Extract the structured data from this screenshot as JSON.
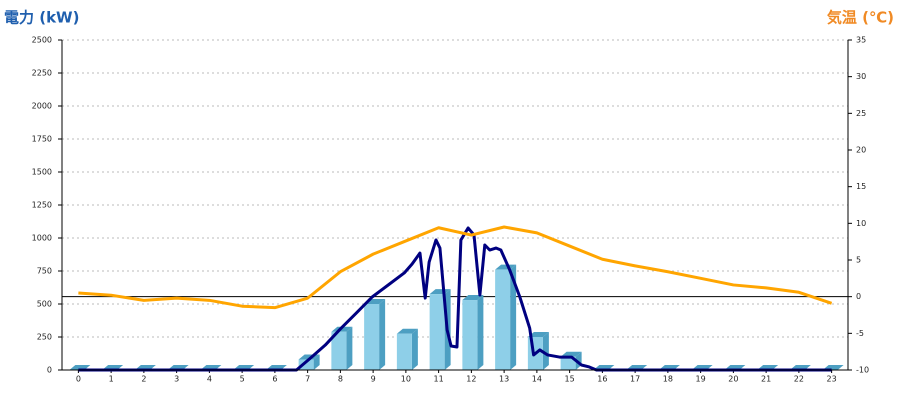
{
  "chart_data": {
    "type": "bar",
    "title": "電力 (kW)",
    "y2_title": "気温 (℃)",
    "x": [
      0,
      1,
      2,
      3,
      4,
      5,
      6,
      7,
      8,
      9,
      10,
      11,
      12,
      13,
      14,
      15,
      16,
      17,
      18,
      19,
      20,
      21,
      22,
      23
    ],
    "xlim": [
      -0.5,
      23.5
    ],
    "xticks": [
      0,
      1,
      2,
      3,
      4,
      5,
      6,
      7,
      8,
      9,
      10,
      11,
      12,
      13,
      14,
      15,
      16,
      17,
      18,
      19,
      20,
      21,
      22,
      23
    ],
    "ylim": [
      0,
      2500
    ],
    "yticks": [
      0,
      250,
      500,
      750,
      1000,
      1250,
      1500,
      1750,
      2000,
      2250,
      2500
    ],
    "y2lim": [
      -10,
      35
    ],
    "y2ticks": [
      -10,
      -5,
      0,
      5,
      10,
      15,
      20,
      25,
      30,
      35
    ],
    "grid": true,
    "title_color": "#1f5fae",
    "y2_title_color": "#f08a24",
    "series": [
      {
        "type": "bar",
        "color": "#8ecfe8",
        "side_color": "#4d9fc2",
        "values": [
          0,
          0,
          0,
          0,
          0,
          0,
          0,
          80,
          290,
          500,
          275,
          575,
          530,
          760,
          250,
          100,
          0,
          0,
          0,
          0,
          0,
          0,
          0,
          0
        ]
      },
      {
        "type": "line",
        "color": "#000080",
        "x": [
          0,
          6.66,
          7.09,
          7.54,
          8.0,
          8.49,
          8.97,
          9.46,
          9.95,
          10.19,
          10.43,
          10.59,
          10.71,
          10.92,
          11.04,
          11.26,
          11.38,
          11.56,
          11.68,
          11.9,
          12.08,
          12.26,
          12.41,
          12.56,
          12.75,
          12.9,
          13.17,
          13.48,
          13.78,
          13.9,
          14.09,
          14.33,
          14.69,
          15.06,
          15.36,
          15.6,
          15.82,
          23
        ],
        "values": [
          0,
          0,
          91,
          189,
          311,
          432,
          553,
          644,
          735,
          803,
          886,
          545,
          818,
          985,
          924,
          303,
          182,
          174,
          985,
          1076,
          1023,
          568,
          947,
          909,
          924,
          909,
          758,
          553,
          318,
          114,
          152,
          114,
          98,
          98,
          38,
          23,
          0,
          0
        ]
      },
      {
        "type": "line",
        "axis": "y2",
        "color": "#ffa500",
        "values": [
          0.5,
          0.2,
          -0.5,
          -0.2,
          -0.5,
          -1.3,
          -1.5,
          -0.2,
          3.4,
          5.8,
          7.6,
          9.4,
          8.4,
          9.5,
          8.7,
          6.9,
          5.1,
          4.2,
          3.4,
          2.5,
          1.6,
          1.2,
          0.6,
          -0.9
        ]
      }
    ]
  }
}
